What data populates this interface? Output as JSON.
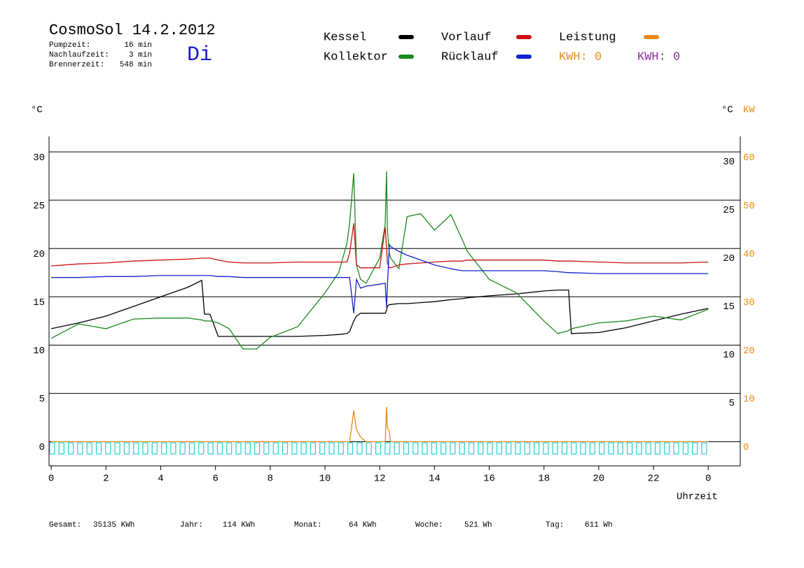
{
  "chart_data": {
    "type": "line",
    "title": "CosmoSol 14.2.2012",
    "weekday": "Di",
    "info": [
      {
        "label": "Pumpzeit:",
        "value": "16 min"
      },
      {
        "label": "Nachlaufzeit:",
        "value": "3 min"
      },
      {
        "label": "Brennerzeit:",
        "value": "548 min"
      }
    ],
    "kwh_labels": [
      {
        "text": "KWH: 0",
        "color": "#e88a1a"
      },
      {
        "text": "KWH: 0",
        "color": "#8a2a9a"
      }
    ],
    "ylabel": "°C",
    "y_right_label": "°C",
    "y2label": "KW",
    "xlabel": "Uhrzeit",
    "x": [
      0,
      1,
      2,
      3,
      4,
      5,
      5.5,
      5.6,
      5.8,
      6.1,
      6.5,
      7,
      7.5,
      8,
      9,
      10,
      10.5,
      10.8,
      10.9,
      11.05,
      11.15,
      11.3,
      11.5,
      12,
      12.2,
      12.25,
      12.28,
      12.35,
      12.4,
      12.7,
      13,
      13.5,
      14,
      14.6,
      15,
      15.2,
      16,
      17,
      18,
      18.5,
      18.9,
      19,
      20,
      21,
      22,
      23,
      24
    ],
    "xlim": [
      -0.08,
      25.17
    ],
    "xticks": [
      0,
      2,
      4,
      6,
      8,
      10,
      12,
      14,
      16,
      18,
      20,
      22,
      {
        "value": 24,
        "label": "0"
      }
    ],
    "ylim": [
      -2.5,
      31.6
    ],
    "yticks": [
      0,
      5,
      10,
      15,
      20,
      25,
      30
    ],
    "y_right_ticks": [
      5,
      10,
      15,
      20,
      25,
      30
    ],
    "y2lim": [
      -5,
      63.2
    ],
    "y2ticks": [
      0,
      10,
      20,
      30,
      40,
      50,
      60
    ],
    "series": [
      {
        "name": "Kessel",
        "color": "#000000",
        "values": [
          11.7,
          12.3,
          13.0,
          14.0,
          15.0,
          16.0,
          16.7,
          13.2,
          13.2,
          10.9,
          10.9,
          10.9,
          10.9,
          10.9,
          10.9,
          11.0,
          11.1,
          11.2,
          11.4,
          12.5,
          13.0,
          13.3,
          13.3,
          13.3,
          13.3,
          13.6,
          14.0,
          14.2,
          14.2,
          14.3,
          14.3,
          14.4,
          14.5,
          14.7,
          14.8,
          14.9,
          15.1,
          15.3,
          15.6,
          15.7,
          15.7,
          11.2,
          11.3,
          11.8,
          12.5,
          13.2,
          13.8
        ]
      },
      {
        "name": "Kollektor",
        "color": "#1a8a1a",
        "values": [
          10.7,
          12.2,
          11.7,
          12.7,
          12.8,
          12.8,
          12.6,
          12.5,
          12.5,
          12.3,
          11.7,
          9.6,
          9.6,
          10.8,
          11.9,
          15.4,
          17.5,
          20.5,
          22.6,
          27.8,
          18.3,
          16.8,
          16.4,
          19.0,
          22.5,
          28.0,
          22.0,
          19.5,
          19.0,
          17.9,
          23.3,
          23.6,
          21.9,
          23.5,
          21.0,
          19.7,
          16.8,
          15.4,
          12.5,
          11.2,
          11.5,
          11.7,
          12.3,
          12.5,
          13.0,
          12.6,
          13.7
        ]
      },
      {
        "name": "Vorlauf",
        "color": "#cc1111",
        "values": [
          18.2,
          18.4,
          18.5,
          18.7,
          18.8,
          18.9,
          19.0,
          19.0,
          19.0,
          18.8,
          18.6,
          18.5,
          18.5,
          18.5,
          18.6,
          18.6,
          18.6,
          18.6,
          19.5,
          22.6,
          18.3,
          18.0,
          18.0,
          18.0,
          22.2,
          20.0,
          18.5,
          18.0,
          18.0,
          18.3,
          18.4,
          18.5,
          18.6,
          18.7,
          18.7,
          18.8,
          18.8,
          18.8,
          18.8,
          18.7,
          18.7,
          18.7,
          18.6,
          18.5,
          18.5,
          18.5,
          18.6
        ]
      },
      {
        "name": "Rücklauf",
        "color": "#1122cc",
        "values": [
          17.0,
          17.0,
          17.1,
          17.1,
          17.2,
          17.2,
          17.2,
          17.2,
          17.2,
          17.1,
          17.1,
          17.0,
          17.0,
          17.0,
          17.0,
          17.0,
          17.0,
          17.0,
          17.0,
          13.3,
          16.8,
          15.9,
          16.1,
          16.3,
          16.4,
          13.9,
          16.0,
          20.4,
          20.2,
          19.7,
          19.3,
          18.8,
          18.3,
          17.9,
          17.7,
          17.7,
          17.7,
          17.7,
          17.7,
          17.6,
          17.5,
          17.5,
          17.4,
          17.4,
          17.4,
          17.4,
          17.4
        ]
      },
      {
        "name": "Leistung",
        "color": "#e88a1a",
        "axis": "y2",
        "values": [
          0,
          0,
          0,
          0,
          0,
          0,
          0,
          0,
          0,
          0,
          0,
          0,
          0,
          0,
          0,
          0,
          0,
          0,
          0,
          6.4,
          2.5,
          1,
          0,
          0,
          0,
          7.2,
          3,
          2,
          0,
          0,
          0,
          0,
          0,
          0,
          0,
          0,
          0,
          0,
          0,
          0,
          0,
          0,
          0,
          0,
          0,
          0,
          0
        ]
      }
    ],
    "footer": [
      {
        "label": "Gesamt:",
        "value": "35135 KWh"
      },
      {
        "label": "Jahr:",
        "value": "114 KWh"
      },
      {
        "label": "Monat:",
        "value": "64 KWh"
      },
      {
        "label": "Woche:",
        "value": "521 Wh"
      },
      {
        "label": "Tag:",
        "value": "611 Wh"
      }
    ]
  }
}
